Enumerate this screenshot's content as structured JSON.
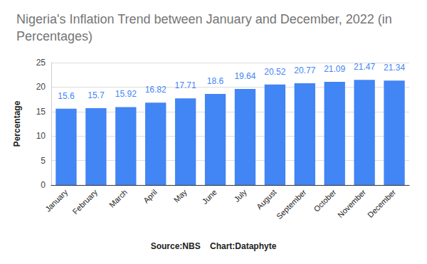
{
  "chart_data": {
    "type": "bar",
    "title": "Nigeria's Inflation Trend between January and December, 2022 (in Percentages)",
    "y_label": "Percentage",
    "source": "Source:NBS",
    "credit": "Chart:Dataphyte",
    "categories": [
      "January",
      "February",
      "March",
      "April",
      "May",
      "June",
      "July",
      "August",
      "September",
      "October",
      "November",
      "December"
    ],
    "values": [
      15.6,
      15.7,
      15.92,
      16.82,
      17.71,
      18.6,
      19.64,
      20.52,
      20.77,
      21.09,
      21.47,
      21.34
    ],
    "color": "#4285f4",
    "ylim": [
      0,
      25
    ],
    "yticks": [
      0,
      5,
      10,
      15,
      20,
      25
    ],
    "grid": true,
    "data_labels": true
  }
}
